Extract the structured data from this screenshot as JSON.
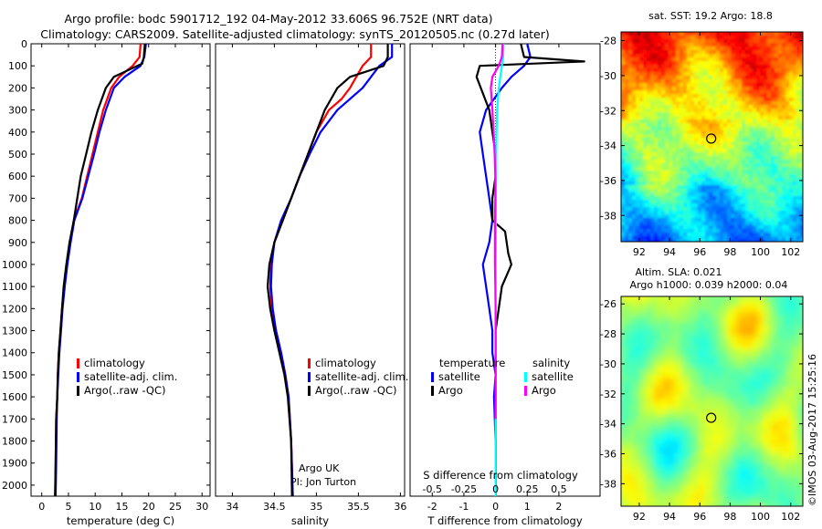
{
  "header": {
    "line1": "Argo profile: bodc 5901712_192 04-May-2012 33.606S 96.752E (NRT data)",
    "line2": "Climatology: CARS2009. Satellite-adjusted climatology: synTS_20120505.nc (0.27d later)"
  },
  "side_label": "©IMOS 03-Aug-2017 15:25:16",
  "credits": {
    "line1": "Argo UK",
    "line2": "PI: Jon Turton"
  },
  "colors": {
    "climatology": "#ff0000",
    "satellite": "#0000ff",
    "argo": "#000000",
    "satellite_s": "#00ffff",
    "argo_s": "#ff00ff"
  },
  "chart_data": [
    {
      "type": "line",
      "id": "temperature",
      "xlabel": "temperature (deg C)",
      "ylabel": "",
      "xlim": [
        -2,
        31.5
      ],
      "ylim": [
        2050,
        0
      ],
      "xticks": [
        0,
        5,
        10,
        15,
        20,
        25,
        30
      ],
      "yticks": [
        0,
        100,
        200,
        300,
        400,
        500,
        600,
        700,
        800,
        900,
        1000,
        1100,
        1200,
        1300,
        1400,
        1500,
        1600,
        1700,
        1800,
        1900,
        2000
      ],
      "legend": [
        "climatology",
        "satellite-adj. clim.",
        "Argo(..raw -QC)"
      ],
      "series": [
        {
          "name": "climatology",
          "color": "#ff0000",
          "x": [
            18.5,
            18.3,
            17.0,
            14.5,
            13.0,
            11.5,
            10.5,
            9.5,
            8.5,
            7.5,
            6.0,
            5.3,
            4.7,
            4.2,
            3.8,
            3.5,
            3.2,
            3.0,
            2.9,
            2.7,
            2.6,
            2.5
          ],
          "y": [
            0,
            60,
            100,
            150,
            200,
            300,
            400,
            500,
            600,
            700,
            800,
            900,
            1000,
            1100,
            1200,
            1300,
            1400,
            1500,
            1600,
            1700,
            1900,
            2050
          ]
        },
        {
          "name": "satellite-adj. clim.",
          "color": "#0000ff",
          "x": [
            19.5,
            19.2,
            18.5,
            15.5,
            13.5,
            12.0,
            10.8,
            9.8,
            8.7,
            7.6,
            6.1,
            5.4,
            4.8,
            4.3,
            3.9,
            3.6,
            3.3,
            3.1,
            2.9,
            2.8,
            2.7,
            2.6
          ],
          "y": [
            0,
            60,
            100,
            150,
            200,
            300,
            400,
            500,
            600,
            700,
            800,
            900,
            1000,
            1100,
            1200,
            1300,
            1400,
            1500,
            1600,
            1700,
            1900,
            2050
          ]
        },
        {
          "name": "Argo(..raw -QC)",
          "color": "#000000",
          "x": [
            19.3,
            19.1,
            18.8,
            17.0,
            13.5,
            12.0,
            10.5,
            9.3,
            8.3,
            7.3,
            6.0,
            5.2,
            4.6,
            4.1,
            3.8,
            3.5,
            3.2,
            3.0,
            2.9,
            2.7,
            2.6,
            2.5
          ],
          "y": [
            0,
            60,
            90,
            110,
            150,
            200,
            300,
            400,
            500,
            600,
            800,
            900,
            1000,
            1100,
            1200,
            1300,
            1400,
            1500,
            1600,
            1700,
            1900,
            2050
          ]
        }
      ]
    },
    {
      "type": "line",
      "id": "salinity",
      "xlabel": "salinity",
      "ylabel": "",
      "xlim": [
        33.8,
        36.05
      ],
      "ylim": [
        2050,
        0
      ],
      "xticks": [
        34,
        34.5,
        35,
        35.5,
        36
      ],
      "xtick_labels": [
        "34",
        "34.5",
        "35",
        "35.5",
        "36"
      ],
      "legend": [
        "climatology",
        "satellite-adj. clim.",
        "Argo(..raw -QC)"
      ],
      "series": [
        {
          "name": "climatology",
          "color": "#ff0000",
          "x": [
            35.65,
            35.65,
            35.55,
            35.4,
            35.3,
            35.15,
            35.0,
            34.9,
            34.8,
            34.7,
            34.6,
            34.5,
            34.46,
            34.45,
            34.47,
            34.52,
            34.58,
            34.63,
            34.67,
            34.7,
            34.72
          ],
          "y": [
            0,
            60,
            100,
            200,
            250,
            300,
            400,
            500,
            600,
            700,
            800,
            900,
            1000,
            1100,
            1200,
            1300,
            1400,
            1500,
            1600,
            1800,
            2050
          ]
        },
        {
          "name": "satellite-adj. clim.",
          "color": "#0000ff",
          "x": [
            35.9,
            35.9,
            35.75,
            35.55,
            35.4,
            35.25,
            35.05,
            34.92,
            34.8,
            34.7,
            34.58,
            34.5,
            34.47,
            34.46,
            34.48,
            34.52,
            34.58,
            34.63,
            34.67,
            34.7,
            34.72
          ],
          "y": [
            0,
            60,
            100,
            200,
            250,
            300,
            400,
            500,
            600,
            700,
            800,
            900,
            1000,
            1100,
            1200,
            1300,
            1400,
            1500,
            1600,
            1800,
            2050
          ]
        },
        {
          "name": "Argo(..raw -QC)",
          "color": "#000000",
          "x": [
            35.85,
            35.85,
            35.8,
            35.4,
            35.25,
            35.1,
            35.0,
            34.9,
            34.8,
            34.7,
            34.6,
            34.5,
            34.44,
            34.42,
            34.45,
            34.5,
            34.56,
            34.62,
            34.66,
            34.7,
            34.71
          ],
          "y": [
            0,
            60,
            100,
            150,
            200,
            300,
            400,
            500,
            600,
            700,
            800,
            900,
            1000,
            1100,
            1200,
            1300,
            1400,
            1500,
            1600,
            1800,
            2050
          ]
        }
      ]
    },
    {
      "type": "line",
      "id": "differences",
      "xlabel": "T difference from climatology",
      "x2label": "S difference from climatology",
      "ylabel": "",
      "xlim": [
        -2.7,
        3.3
      ],
      "ylim": [
        2050,
        0
      ],
      "xticks": [
        -2,
        -1,
        0,
        1,
        2
      ],
      "x2ticks": [
        -0.5,
        -0.25,
        0,
        0.25,
        0.5
      ],
      "x2tick_labels": [
        "-0.5",
        "-0.25",
        "0",
        "0.25",
        "0.5"
      ],
      "legend_temperature_title": "temperature",
      "legend_salinity_title": "salinity",
      "legend_temperature": [
        "satellite",
        "Argo"
      ],
      "legend_salinity": [
        "satellite",
        "Argo"
      ],
      "series": [
        {
          "name": "temperature satellite",
          "color": "#0000ff",
          "x": [
            1.0,
            1.1,
            0.9,
            0.5,
            0.2,
            -0.3,
            -0.5,
            -0.4,
            -0.3,
            -0.2,
            -0.1,
            -0.2,
            -0.4,
            -0.3,
            -0.2,
            -0.1,
            -0.1,
            0.0,
            -0.05,
            0.0,
            0.0
          ],
          "y": [
            0,
            60,
            100,
            150,
            200,
            300,
            400,
            500,
            600,
            700,
            800,
            900,
            1000,
            1100,
            1200,
            1300,
            1400,
            1500,
            1600,
            1800,
            2050
          ]
        },
        {
          "name": "temperature Argo",
          "color": "#000000",
          "x": [
            0.8,
            0.9,
            2.8,
            -0.5,
            -0.6,
            -0.2,
            0.0,
            0.0,
            -0.1,
            -0.1,
            0.3,
            0.4,
            0.5,
            0.2,
            0.1,
            0.0,
            0.0,
            0.0,
            0.0,
            0.0,
            0.0
          ],
          "y": [
            0,
            60,
            80,
            100,
            150,
            300,
            500,
            600,
            700,
            800,
            850,
            950,
            1000,
            1100,
            1200,
            1300,
            1500,
            1600,
            1800,
            1900,
            2050
          ]
        },
        {
          "name": "salinity satellite",
          "color": "#00ffff",
          "x": [
            0.25,
            0.24,
            0.2,
            0.15,
            0.1,
            0.05,
            0.03,
            0.02,
            0.02,
            0.01,
            0.01,
            0.01,
            0.0,
            0.0,
            0.0,
            0.0,
            0.0,
            0.0,
            0.0,
            0.0,
            0.0
          ],
          "y": [
            0,
            60,
            100,
            150,
            200,
            300,
            400,
            500,
            600,
            700,
            800,
            900,
            1000,
            1100,
            1200,
            1300,
            1400,
            1500,
            1600,
            1800,
            2050
          ]
        },
        {
          "name": "salinity Argo",
          "color": "#ff00ff",
          "x": [
            0.22,
            0.2,
            0.1,
            -0.1,
            -0.15,
            -0.1,
            -0.06,
            -0.03,
            -0.01,
            -0.01,
            -0.02,
            -0.02,
            -0.02,
            -0.01,
            0.0,
            0.0,
            0.0,
            0.0,
            0.0,
            0.0
          ],
          "y": [
            0,
            60,
            100,
            150,
            200,
            300,
            400,
            500,
            600,
            700,
            800,
            900,
            1000,
            1100,
            1200,
            1300,
            1400,
            1500,
            1600,
            1700
          ]
        }
      ]
    },
    {
      "type": "heatmap",
      "id": "sst-map",
      "title": "sat. SST: 19.2  Argo: 18.8",
      "xlim": [
        90.8,
        102.8
      ],
      "ylim": [
        -39.5,
        -27.5
      ],
      "xticks": [
        92,
        94,
        96,
        98,
        100,
        102
      ],
      "yticks": [
        -28,
        -30,
        -32,
        -34,
        -36,
        -38
      ],
      "marker": {
        "x": 96.75,
        "y": -33.6
      }
    },
    {
      "type": "heatmap",
      "id": "sla-map",
      "title": "Altim. SLA: 0.021",
      "subtitle": "Argo h1000: 0.039 h2000: 0.04",
      "xlim": [
        90.8,
        102.8
      ],
      "ylim": [
        -39.5,
        -25.5
      ],
      "xticks": [
        92,
        94,
        96,
        98,
        100,
        102
      ],
      "yticks": [
        -26,
        -28,
        -30,
        -32,
        -34,
        -36,
        -38
      ],
      "marker": {
        "x": 96.75,
        "y": -33.6
      }
    }
  ]
}
